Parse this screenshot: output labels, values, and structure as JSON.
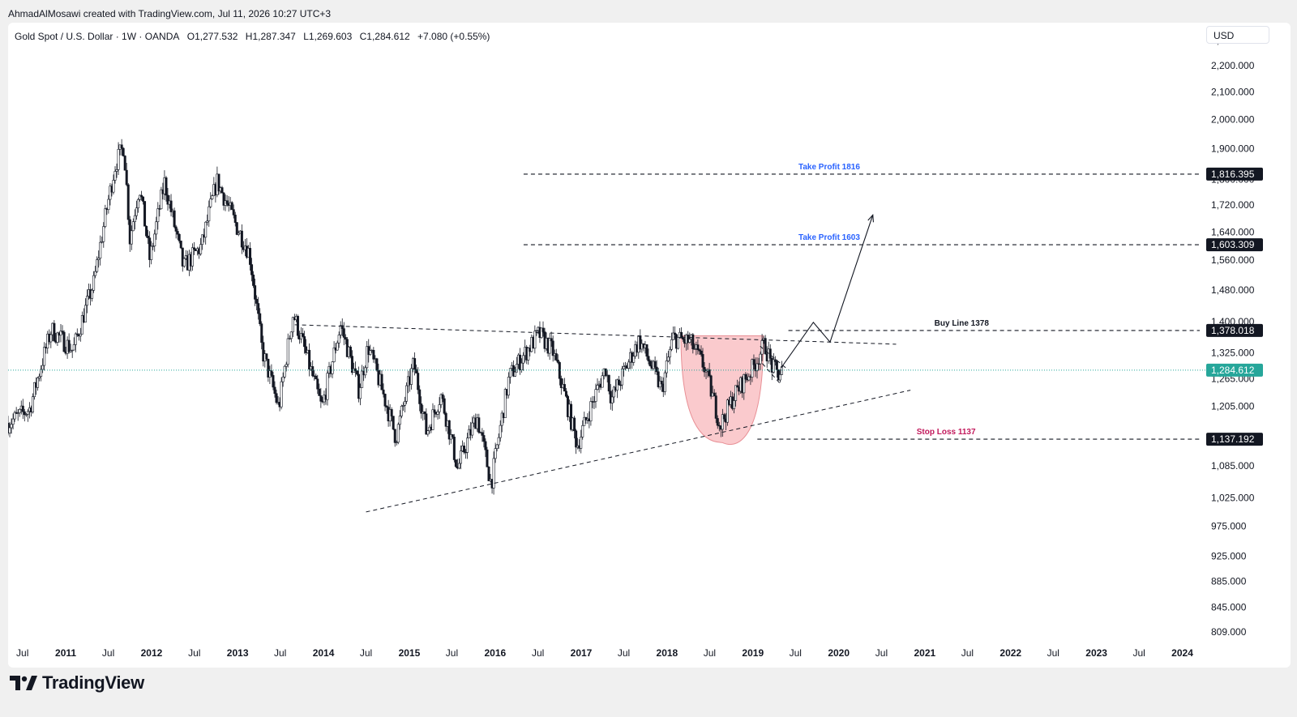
{
  "header": {
    "author_line": "AhmadAlMosawi created with TradingView.com, Jul 11, 2026 10:27 UTC+3"
  },
  "legend": {
    "symbol": "Gold Spot / U.S. Dollar · 1W · OANDA",
    "open": "O1,277.532",
    "high": "H1,287.347",
    "low": "L1,269.603",
    "close": "C1,284.612",
    "change": "+7.080 (+0.55%)"
  },
  "currency_label": "USD",
  "footer": {
    "brand": "TradingView"
  },
  "colors": {
    "candle": "#131722",
    "price_line": "#26a69a",
    "take_profit_text": "#2962ff",
    "stop_loss_text": "#c2185b",
    "cup_fill": "#f8b4b8"
  },
  "chart_data": {
    "type": "candlestick",
    "title": "",
    "ylim": [
      809,
      2300
    ],
    "x_range": [
      "2010-05-01",
      "2024-03-15"
    ],
    "y_ticks": [
      {
        "value": 2300,
        "label": "2,300.000"
      },
      {
        "value": 2200,
        "label": "2,200.000"
      },
      {
        "value": 2100,
        "label": "2,100.000"
      },
      {
        "value": 2000,
        "label": "2,000.000"
      },
      {
        "value": 1900,
        "label": "1,900.000"
      },
      {
        "value": 1800,
        "label": "1,800.000"
      },
      {
        "value": 1720,
        "label": "1,720.000"
      },
      {
        "value": 1640,
        "label": "1,640.000"
      },
      {
        "value": 1560,
        "label": "1,560.000"
      },
      {
        "value": 1480,
        "label": "1,480.000"
      },
      {
        "value": 1400,
        "label": "1,400.000"
      },
      {
        "value": 1325,
        "label": "1,325.000"
      },
      {
        "value": 1265,
        "label": "1,265.000"
      },
      {
        "value": 1205,
        "label": "1,205.000"
      },
      {
        "value": 1085,
        "label": "1,085.000"
      },
      {
        "value": 1025,
        "label": "1,025.000"
      },
      {
        "value": 975,
        "label": "975.000"
      },
      {
        "value": 925,
        "label": "925.000"
      },
      {
        "value": 885,
        "label": "885.000"
      },
      {
        "value": 845,
        "label": "845.000"
      },
      {
        "value": 809,
        "label": "809.000"
      }
    ],
    "x_ticks": [
      {
        "date": "2010-07-01",
        "label": "Jul",
        "bold": false
      },
      {
        "date": "2011-01-01",
        "label": "2011",
        "bold": true
      },
      {
        "date": "2011-07-01",
        "label": "Jul",
        "bold": false
      },
      {
        "date": "2012-01-01",
        "label": "2012",
        "bold": true
      },
      {
        "date": "2012-07-01",
        "label": "Jul",
        "bold": false
      },
      {
        "date": "2013-01-01",
        "label": "2013",
        "bold": true
      },
      {
        "date": "2013-07-01",
        "label": "Jul",
        "bold": false
      },
      {
        "date": "2014-01-01",
        "label": "2014",
        "bold": true
      },
      {
        "date": "2014-07-01",
        "label": "Jul",
        "bold": false
      },
      {
        "date": "2015-01-01",
        "label": "2015",
        "bold": true
      },
      {
        "date": "2015-07-01",
        "label": "Jul",
        "bold": false
      },
      {
        "date": "2016-01-01",
        "label": "2016",
        "bold": true
      },
      {
        "date": "2016-07-01",
        "label": "Jul",
        "bold": false
      },
      {
        "date": "2017-01-01",
        "label": "2017",
        "bold": true
      },
      {
        "date": "2017-07-01",
        "label": "Jul",
        "bold": false
      },
      {
        "date": "2018-01-01",
        "label": "2018",
        "bold": true
      },
      {
        "date": "2018-07-01",
        "label": "Jul",
        "bold": false
      },
      {
        "date": "2019-01-01",
        "label": "2019",
        "bold": true
      },
      {
        "date": "2019-07-01",
        "label": "Jul",
        "bold": false
      },
      {
        "date": "2020-01-01",
        "label": "2020",
        "bold": true
      },
      {
        "date": "2020-07-01",
        "label": "Jul",
        "bold": false
      },
      {
        "date": "2021-01-01",
        "label": "2021",
        "bold": true
      },
      {
        "date": "2021-07-01",
        "label": "Jul",
        "bold": false
      },
      {
        "date": "2022-01-01",
        "label": "2022",
        "bold": true
      },
      {
        "date": "2022-07-01",
        "label": "Jul",
        "bold": false
      },
      {
        "date": "2023-01-01",
        "label": "2023",
        "bold": true
      },
      {
        "date": "2023-07-01",
        "label": "Jul",
        "bold": false
      },
      {
        "date": "2024-01-01",
        "label": "2024",
        "bold": true
      }
    ],
    "price_path": [
      [
        "2010-05-01",
        1170
      ],
      [
        "2010-08-01",
        1200
      ],
      [
        "2010-11-01",
        1380
      ],
      [
        "2011-02-01",
        1330
      ],
      [
        "2011-05-01",
        1500
      ],
      [
        "2011-08-01",
        1850
      ],
      [
        "2011-09-05",
        1910
      ],
      [
        "2011-10-01",
        1620
      ],
      [
        "2011-11-10",
        1780
      ],
      [
        "2011-12-25",
        1560
      ],
      [
        "2012-02-25",
        1790
      ],
      [
        "2012-05-15",
        1540
      ],
      [
        "2012-08-01",
        1600
      ],
      [
        "2012-10-05",
        1795
      ],
      [
        "2012-12-25",
        1660
      ],
      [
        "2013-02-20",
        1580
      ],
      [
        "2013-04-15",
        1330
      ],
      [
        "2013-06-25",
        1200
      ],
      [
        "2013-08-25",
        1420
      ],
      [
        "2013-12-25",
        1200
      ],
      [
        "2014-03-15",
        1390
      ],
      [
        "2014-06-01",
        1240
      ],
      [
        "2014-07-10",
        1340
      ],
      [
        "2014-11-05",
        1140
      ],
      [
        "2015-01-20",
        1300
      ],
      [
        "2015-03-15",
        1150
      ],
      [
        "2015-05-15",
        1230
      ],
      [
        "2015-07-25",
        1080
      ],
      [
        "2015-10-15",
        1185
      ],
      [
        "2015-12-15",
        1050
      ],
      [
        "2016-03-01",
        1270
      ],
      [
        "2016-07-05",
        1370
      ],
      [
        "2016-09-01",
        1330
      ],
      [
        "2016-12-15",
        1125
      ],
      [
        "2017-04-15",
        1290
      ],
      [
        "2017-05-10",
        1220
      ],
      [
        "2017-09-05",
        1355
      ],
      [
        "2017-12-10",
        1240
      ],
      [
        "2018-01-25",
        1360
      ],
      [
        "2018-04-10",
        1350
      ],
      [
        "2018-06-10",
        1290
      ],
      [
        "2018-08-15",
        1165
      ],
      [
        "2018-10-15",
        1230
      ],
      [
        "2019-01-01",
        1290
      ],
      [
        "2019-02-20",
        1345
      ],
      [
        "2019-03-25",
        1290
      ],
      [
        "2019-04-20",
        1275
      ],
      [
        "2019-05-05",
        1284.612
      ]
    ],
    "lines": [
      {
        "label": "Take Profit 1816",
        "value": 1816.395,
        "value_label": "1,816.395",
        "from": "2016-05-01",
        "color": "take_profit"
      },
      {
        "label": "Take Profit 1603",
        "value": 1603.309,
        "value_label": "1,603.309",
        "from": "2016-05-01",
        "color": "take_profit"
      },
      {
        "label": "Buy Line 1378",
        "value": 1378.018,
        "value_label": "1,378.018",
        "from": "2019-06-01",
        "color": "neutral"
      },
      {
        "label": "Stop Loss 1137",
        "value": 1137.192,
        "value_label": "1,137.192",
        "from": "2019-01-20",
        "color": "stop_loss"
      }
    ],
    "current_price": {
      "value": 1284.612,
      "label": "1,284.612"
    },
    "trendlines": [
      {
        "name": "resistance",
        "from": [
          "2013-09-01",
          1392
        ],
        "to": [
          "2020-09-01",
          1345
        ]
      },
      {
        "name": "support",
        "from": [
          "2014-07-01",
          1000
        ],
        "to": [
          "2020-11-01",
          1240
        ]
      },
      {
        "name": "handle-top",
        "from": [
          "2019-02-01",
          1340
        ],
        "to": [
          "2019-06-01",
          1285
        ]
      },
      {
        "name": "handle-bottom",
        "from": [
          "2019-02-10",
          1300
        ],
        "to": [
          "2019-05-01",
          1252
        ]
      }
    ],
    "projection_path": [
      [
        "2019-05-01",
        1290
      ],
      [
        "2019-09-15",
        1398
      ],
      [
        "2019-11-25",
        1350
      ],
      [
        "2020-05-25",
        1690
      ]
    ],
    "cup": {
      "from": "2018-03-01",
      "to": "2019-02-15",
      "rim": 1365,
      "bottom": 1155
    }
  }
}
